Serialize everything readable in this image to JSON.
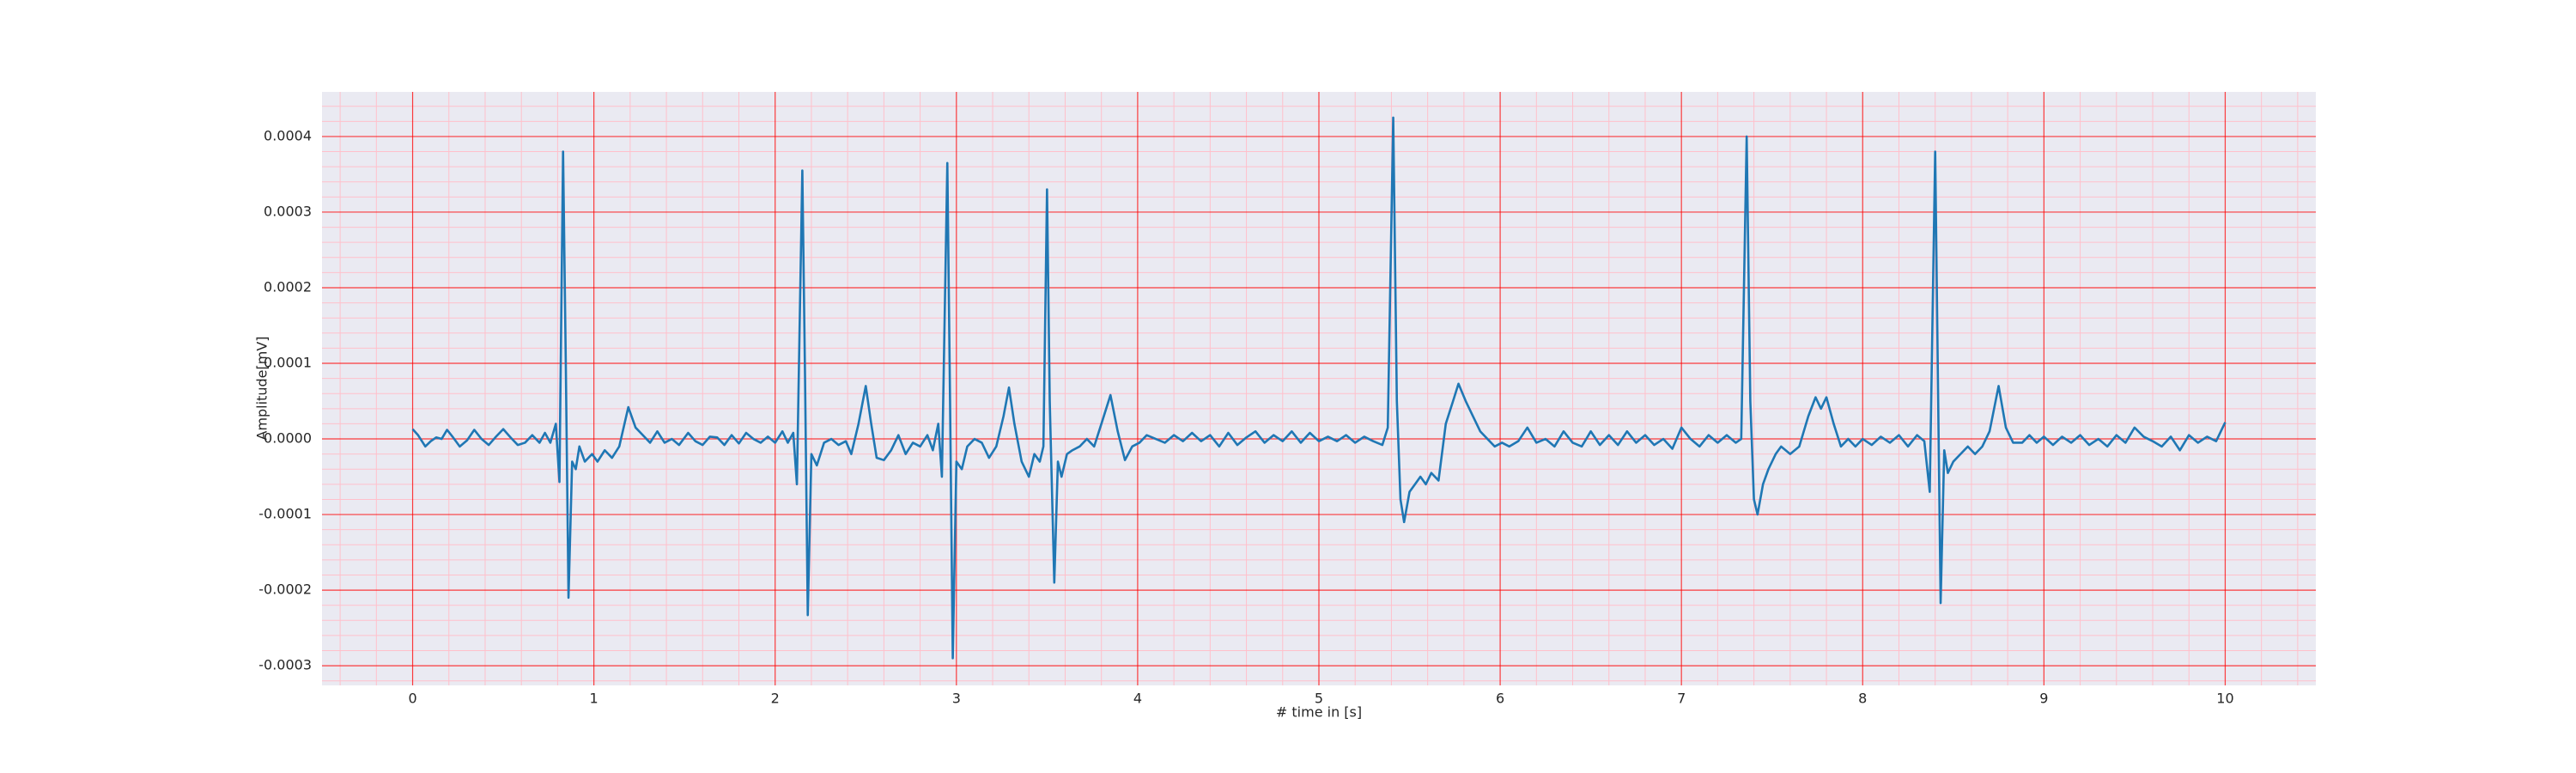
{
  "chart_data": {
    "type": "line",
    "xlabel": "# time in [s]",
    "ylabel": "Amplitude[mV]",
    "xlim": [
      -0.5,
      10.5
    ],
    "ylim": [
      -0.000326,
      0.000459
    ],
    "xticks": [
      0,
      1,
      2,
      3,
      4,
      5,
      6,
      7,
      8,
      9,
      10
    ],
    "yticks": [
      -0.0003,
      -0.0002,
      -0.0001,
      {
        "value": 0,
        "label": "0.0000"
      },
      0.0001,
      0.0002,
      0.0003,
      0.0004
    ],
    "xminorticks": [
      -0.4,
      -0.2,
      0.2,
      0.4,
      0.6,
      0.8,
      1.2,
      1.4,
      1.6,
      1.8,
      2.2,
      2.4,
      2.6,
      2.8,
      3.2,
      3.4,
      3.6,
      3.8,
      4.2,
      4.4,
      4.6,
      4.8,
      5.2,
      5.4,
      5.6,
      5.8,
      6.2,
      6.4,
      6.6,
      6.8,
      7.2,
      7.4,
      7.6,
      7.8,
      8.2,
      8.4,
      8.6,
      8.8,
      9.2,
      9.4,
      9.6,
      9.8,
      10.2,
      10.4
    ],
    "yminorticks": [
      -0.00032,
      -0.00028,
      -0.00026,
      -0.00024,
      -0.00022,
      -0.00018,
      -0.00016,
      -0.00014,
      -0.00012,
      -8e-05,
      -6e-05,
      -4e-05,
      -2e-05,
      2e-05,
      4e-05,
      6e-05,
      8e-05,
      0.00012,
      0.00014,
      0.00016,
      0.00018,
      0.00022,
      0.00024,
      0.00026,
      0.00028,
      0.00032,
      0.00034,
      0.00036,
      0.00038,
      0.00042,
      0.00044
    ],
    "grid": true,
    "grid_color": "#ff0000",
    "minor_grid_color": "#ffc0cb",
    "background": "#eaeaf2",
    "color": "#1f77b4",
    "x": [
      0,
      0.03,
      0.07,
      0.1,
      0.13,
      0.16,
      0.19,
      0.22,
      0.26,
      0.3,
      0.34,
      0.38,
      0.42,
      0.46,
      0.5,
      0.54,
      0.58,
      0.62,
      0.66,
      0.7,
      0.73,
      0.76,
      0.79,
      0.81,
      0.83,
      0.845,
      0.86,
      0.88,
      0.9,
      0.92,
      0.95,
      0.99,
      1.02,
      1.06,
      1.1,
      1.14,
      1.19,
      1.23,
      1.27,
      1.31,
      1.35,
      1.39,
      1.43,
      1.47,
      1.52,
      1.56,
      1.6,
      1.64,
      1.68,
      1.72,
      1.76,
      1.8,
      1.84,
      1.88,
      1.92,
      1.96,
      2.0,
      2.04,
      2.07,
      2.1,
      2.12,
      2.15,
      2.165,
      2.18,
      2.2,
      2.23,
      2.27,
      2.31,
      2.35,
      2.39,
      2.42,
      2.46,
      2.5,
      2.53,
      2.56,
      2.6,
      2.64,
      2.68,
      2.72,
      2.76,
      2.8,
      2.84,
      2.87,
      2.9,
      2.92,
      2.95,
      2.965,
      2.98,
      3.0,
      3.03,
      3.06,
      3.1,
      3.14,
      3.18,
      3.22,
      3.26,
      3.29,
      3.32,
      3.36,
      3.4,
      3.43,
      3.46,
      3.48,
      3.5,
      3.515,
      3.54,
      3.56,
      3.58,
      3.61,
      3.64,
      3.68,
      3.72,
      3.76,
      3.8,
      3.85,
      3.89,
      3.93,
      3.97,
      4.01,
      4.05,
      4.1,
      4.15,
      4.2,
      4.25,
      4.3,
      4.35,
      4.4,
      4.45,
      4.5,
      4.55,
      4.6,
      4.65,
      4.7,
      4.75,
      4.8,
      4.85,
      4.9,
      4.95,
      5.0,
      5.05,
      5.1,
      5.15,
      5.2,
      5.25,
      5.3,
      5.35,
      5.38,
      5.41,
      5.43,
      5.45,
      5.47,
      5.5,
      5.53,
      5.56,
      5.59,
      5.62,
      5.66,
      5.7,
      5.74,
      5.77,
      5.81,
      5.85,
      5.89,
      5.93,
      5.97,
      6.01,
      6.05,
      6.1,
      6.15,
      6.2,
      6.25,
      6.3,
      6.35,
      6.4,
      6.45,
      6.5,
      6.55,
      6.6,
      6.65,
      6.7,
      6.75,
      6.8,
      6.85,
      6.9,
      6.95,
      7.0,
      7.05,
      7.1,
      7.15,
      7.2,
      7.25,
      7.3,
      7.33,
      7.36,
      7.38,
      7.4,
      7.42,
      7.45,
      7.48,
      7.52,
      7.55,
      7.6,
      7.65,
      7.7,
      7.74,
      7.77,
      7.8,
      7.84,
      7.88,
      7.92,
      7.96,
      8.0,
      8.05,
      8.1,
      8.15,
      8.2,
      8.25,
      8.3,
      8.34,
      8.37,
      8.4,
      8.415,
      8.43,
      8.45,
      8.47,
      8.5,
      8.54,
      8.58,
      8.62,
      8.66,
      8.7,
      8.75,
      8.79,
      8.83,
      8.88,
      8.92,
      8.96,
      9.0,
      9.05,
      9.1,
      9.15,
      9.2,
      9.25,
      9.3,
      9.35,
      9.4,
      9.45,
      9.5,
      9.55,
      9.6,
      9.65,
      9.7,
      9.75,
      9.8,
      9.85,
      9.9,
      9.95,
      10.0
    ],
    "values": [
      1.3e-05,
      5e-06,
      -1e-05,
      -3e-06,
      2e-06,
      0,
      1.2e-05,
      3e-06,
      -1e-05,
      -2e-06,
      1.2e-05,
      0,
      -8e-06,
      3e-06,
      1.3e-05,
      2e-06,
      -8e-06,
      -5e-06,
      5e-06,
      -5e-06,
      8e-06,
      -5e-06,
      2e-05,
      -5.7e-05,
      0.00038,
      0.0001,
      -0.00021,
      -3e-05,
      -4e-05,
      -1e-05,
      -3e-05,
      -2e-05,
      -3e-05,
      -1.5e-05,
      -2.5e-05,
      -1e-05,
      4.2e-05,
      1.5e-05,
      5e-06,
      -5e-06,
      1e-05,
      -5e-06,
      0,
      -8e-06,
      8e-06,
      -3e-06,
      -8e-06,
      3e-06,
      2e-06,
      -8e-06,
      5e-06,
      -6e-06,
      8e-06,
      0,
      -5e-06,
      3e-06,
      -5e-06,
      1e-05,
      -5e-06,
      8e-06,
      -6e-05,
      0.000355,
      8e-05,
      -0.000233,
      -2e-05,
      -3.5e-05,
      -5e-06,
      0,
      -8e-06,
      -3e-06,
      -2e-05,
      2e-05,
      7e-05,
      2e-05,
      -2.5e-05,
      -2.8e-05,
      -1.5e-05,
      5e-06,
      -2e-05,
      -5e-06,
      -1e-05,
      5e-06,
      -1.5e-05,
      2e-05,
      -5e-05,
      0.000365,
      5e-05,
      -0.00029,
      -3e-05,
      -4e-05,
      -1e-05,
      0,
      -5e-06,
      -2.5e-05,
      -1e-05,
      3e-05,
      6.8e-05,
      2e-05,
      -3e-05,
      -5e-05,
      -2e-05,
      -3e-05,
      -1e-05,
      0.00033,
      5e-05,
      -0.00019,
      -3e-05,
      -5e-05,
      -2e-05,
      -1.5e-05,
      -1e-05,
      0,
      -1e-05,
      2e-05,
      5.8e-05,
      1e-05,
      -2.8e-05,
      -1e-05,
      -5e-06,
      5e-06,
      0,
      -5e-06,
      5e-06,
      -3e-06,
      8e-06,
      -3e-06,
      5e-06,
      -1e-05,
      8e-06,
      -8e-06,
      2e-06,
      1e-05,
      -5e-06,
      5e-06,
      -3e-06,
      1e-05,
      -5e-06,
      8e-06,
      -3e-06,
      3e-06,
      -3e-06,
      5e-06,
      -5e-06,
      3e-06,
      -3e-06,
      -8e-06,
      1.5e-05,
      0.000425,
      5e-05,
      -8e-05,
      -0.00011,
      -7e-05,
      -6e-05,
      -5e-05,
      -6e-05,
      -4.5e-05,
      -5.5e-05,
      2e-05,
      5e-05,
      7.3e-05,
      5e-05,
      3e-05,
      1e-05,
      0,
      -1e-05,
      -5e-06,
      -1e-05,
      -3e-06,
      1.5e-05,
      -5e-06,
      0,
      -1e-05,
      1e-05,
      -5e-06,
      -1e-05,
      1e-05,
      -8e-06,
      5e-06,
      -8e-06,
      1e-05,
      -5e-06,
      5e-06,
      -8e-06,
      0,
      -1.3e-05,
      1.5e-05,
      0,
      -1e-05,
      5e-06,
      -5e-06,
      5e-06,
      -5e-06,
      0,
      0.0004,
      5e-05,
      -8e-05,
      -0.0001,
      -6e-05,
      -4e-05,
      -2e-05,
      -1e-05,
      -2e-05,
      -1e-05,
      3e-05,
      5.5e-05,
      4e-05,
      5.5e-05,
      2e-05,
      -1e-05,
      0,
      -1e-05,
      0,
      -8e-06,
      3e-06,
      -5e-06,
      5e-06,
      -1e-05,
      5e-06,
      -3e-06,
      -7e-05,
      0.00038,
      8e-05,
      -0.000217,
      -1.5e-05,
      -4.5e-05,
      -3e-05,
      -2e-05,
      -1e-05,
      -2e-05,
      -1e-05,
      1e-05,
      7e-05,
      1.5e-05,
      -5e-06,
      -5e-06,
      5e-06,
      -5e-06,
      3e-06,
      -8e-06,
      3e-06,
      -5e-06,
      5e-06,
      -8e-06,
      0,
      -1e-05,
      5e-06,
      -5e-06,
      1.5e-05,
      3e-06,
      -3e-06,
      -1e-05,
      3e-06,
      -1.5e-05,
      5e-06,
      -5e-06,
      3e-06,
      -3e-06,
      2.2e-05
    ]
  }
}
